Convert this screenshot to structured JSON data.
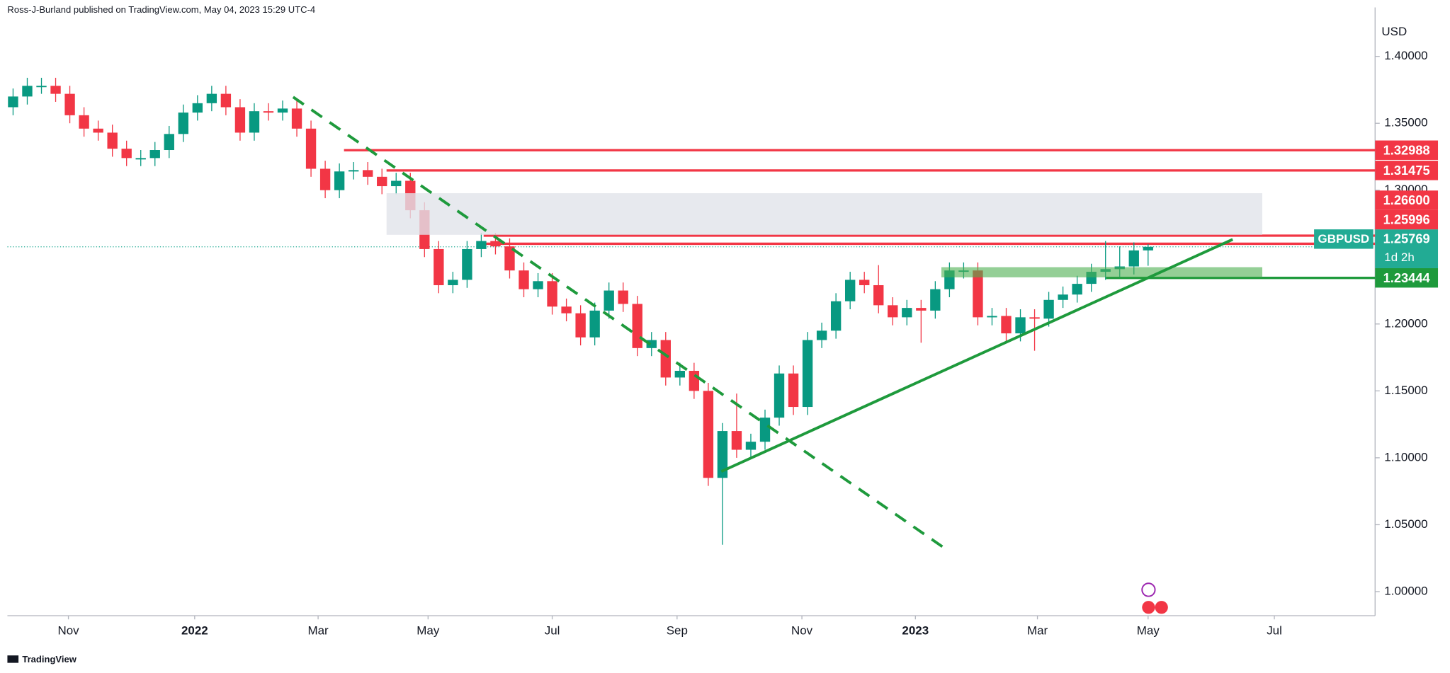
{
  "chart_data": {
    "type": "candlestick",
    "attribution": "Ross-J-Burland published on TradingView.com, May 04, 2023 15:29 UTC-4",
    "watermark": "TradingView",
    "symbol": "GBPUSD",
    "countdown": "1d 2h",
    "y_label": "USD",
    "up_color": "#089981",
    "down_color": "#f23645",
    "open": [
      1.362,
      1.37,
      1.378,
      1.378,
      1.372,
      1.356,
      1.346,
      1.343,
      1.331,
      1.324,
      1.324,
      1.33,
      1.342,
      1.358,
      1.365,
      1.372,
      1.362,
      1.343,
      1.359,
      1.358,
      1.361,
      1.346,
      1.316,
      1.3,
      1.314,
      1.315,
      1.31,
      1.303,
      1.307,
      1.285,
      1.256,
      1.229,
      1.233,
      1.256,
      1.262,
      1.258,
      1.24,
      1.226,
      1.232,
      1.213,
      1.208,
      1.19,
      1.21,
      1.225,
      1.215,
      1.182,
      1.188,
      1.16,
      1.165,
      1.15,
      1.085,
      1.12,
      1.106,
      1.112,
      1.13,
      1.163,
      1.138,
      1.188,
      1.195,
      1.217,
      1.233,
      1.229,
      1.214,
      1.205,
      1.212,
      1.21,
      1.226,
      1.24,
      1.24,
      1.205,
      1.206,
      1.193,
      1.205,
      1.204,
      1.218,
      1.222,
      1.23,
      1.239,
      1.241,
      1.243,
      1.255
    ],
    "high": [
      1.376,
      1.384,
      1.384,
      1.384,
      1.378,
      1.362,
      1.352,
      1.349,
      1.337,
      1.33,
      1.336,
      1.348,
      1.364,
      1.371,
      1.378,
      1.378,
      1.368,
      1.365,
      1.365,
      1.367,
      1.367,
      1.352,
      1.322,
      1.32,
      1.321,
      1.321,
      1.316,
      1.313,
      1.313,
      1.291,
      1.262,
      1.239,
      1.262,
      1.268,
      1.268,
      1.264,
      1.246,
      1.238,
      1.238,
      1.219,
      1.214,
      1.216,
      1.231,
      1.231,
      1.221,
      1.194,
      1.194,
      1.171,
      1.171,
      1.156,
      1.126,
      1.148,
      1.118,
      1.136,
      1.169,
      1.169,
      1.194,
      1.201,
      1.223,
      1.239,
      1.239,
      1.244,
      1.22,
      1.218,
      1.218,
      1.232,
      1.246,
      1.246,
      1.246,
      1.212,
      1.212,
      1.211,
      1.211,
      1.224,
      1.228,
      1.236,
      1.245,
      1.262,
      1.258,
      1.261,
      1.2597
    ],
    "low": [
      1.356,
      1.364,
      1.372,
      1.366,
      1.35,
      1.34,
      1.337,
      1.325,
      1.318,
      1.318,
      1.318,
      1.324,
      1.336,
      1.352,
      1.359,
      1.356,
      1.337,
      1.337,
      1.352,
      1.352,
      1.34,
      1.31,
      1.294,
      1.294,
      1.308,
      1.304,
      1.297,
      1.297,
      1.279,
      1.25,
      1.223,
      1.223,
      1.227,
      1.25,
      1.252,
      1.234,
      1.22,
      1.22,
      1.207,
      1.202,
      1.184,
      1.184,
      1.204,
      1.209,
      1.176,
      1.176,
      1.154,
      1.154,
      1.144,
      1.079,
      1.035,
      1.1,
      1.1,
      1.106,
      1.124,
      1.132,
      1.132,
      1.182,
      1.189,
      1.211,
      1.223,
      1.208,
      1.199,
      1.199,
      1.186,
      1.204,
      1.22,
      1.234,
      1.199,
      1.199,
      1.187,
      1.187,
      1.18,
      1.198,
      1.212,
      1.216,
      1.224,
      1.233,
      1.235,
      1.237,
      1.2435
    ],
    "close": [
      1.37,
      1.378,
      1.378,
      1.372,
      1.356,
      1.346,
      1.343,
      1.331,
      1.324,
      1.324,
      1.33,
      1.342,
      1.358,
      1.365,
      1.372,
      1.362,
      1.343,
      1.359,
      1.358,
      1.361,
      1.346,
      1.316,
      1.3,
      1.314,
      1.315,
      1.31,
      1.303,
      1.307,
      1.285,
      1.256,
      1.229,
      1.233,
      1.256,
      1.262,
      1.258,
      1.24,
      1.226,
      1.232,
      1.213,
      1.208,
      1.19,
      1.21,
      1.225,
      1.215,
      1.182,
      1.188,
      1.16,
      1.165,
      1.15,
      1.085,
      1.12,
      1.106,
      1.112,
      1.13,
      1.163,
      1.138,
      1.188,
      1.195,
      1.217,
      1.233,
      1.229,
      1.214,
      1.205,
      1.212,
      1.21,
      1.226,
      1.24,
      1.24,
      1.205,
      1.206,
      1.193,
      1.205,
      1.204,
      1.218,
      1.222,
      1.23,
      1.239,
      1.241,
      1.243,
      1.255,
      1.25769
    ],
    "xlim": [
      -0.4,
      96
    ],
    "xticks": [
      {
        "value": 3.9,
        "label": "Nov"
      },
      {
        "value": 12.8,
        "label": "2022"
      },
      {
        "value": 21.5,
        "label": "Mar"
      },
      {
        "value": 29.25,
        "label": "May"
      },
      {
        "value": 38,
        "label": "Jul"
      },
      {
        "value": 46.8,
        "label": "Sep"
      },
      {
        "value": 55.6,
        "label": "Nov"
      },
      {
        "value": 63.6,
        "label": "2023"
      },
      {
        "value": 72.2,
        "label": "Mar"
      },
      {
        "value": 80,
        "label": "May"
      },
      {
        "value": 88.9,
        "label": "Jul"
      }
    ],
    "ylim": [
      0.982,
      1.4366
    ],
    "yticks": [
      {
        "value": 1.0,
        "label": "1.00000"
      },
      {
        "value": 1.05,
        "label": "1.05000"
      },
      {
        "value": 1.1,
        "label": "1.10000"
      },
      {
        "value": 1.15,
        "label": "1.15000"
      },
      {
        "value": 1.2,
        "label": "1.20000"
      },
      {
        "value": 1.25,
        "label": "1.25000"
      },
      {
        "value": 1.3,
        "label": "1.30000"
      },
      {
        "value": 1.35,
        "label": "1.35000"
      },
      {
        "value": 1.4,
        "label": "1.40000"
      }
    ],
    "levels": [
      {
        "value": 1.32988,
        "label": "1.32988",
        "color": "#f23645"
      },
      {
        "value": 1.31475,
        "label": "1.31475",
        "color": "#f23645"
      },
      {
        "value": 1.266,
        "label": "1.26600",
        "color": "#f23645"
      },
      {
        "value": 1.25996,
        "label": "1.25996",
        "color": "#f23645"
      },
      {
        "value": 1.23444,
        "label": "1.23444",
        "color": "#1e9a3c"
      }
    ],
    "last_color": "#22ab94"
  }
}
